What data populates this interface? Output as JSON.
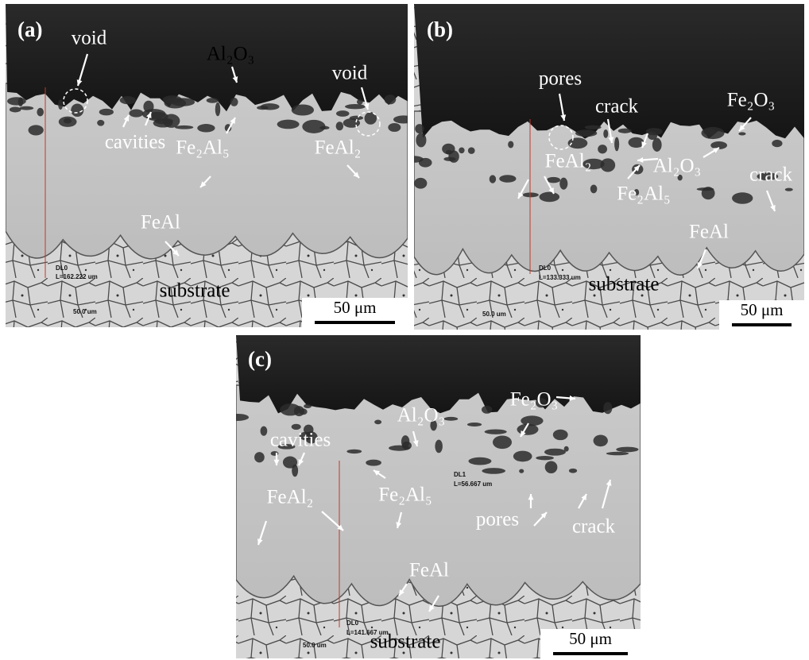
{
  "panels": [
    {
      "label": "(a)",
      "annotations": [
        "void",
        "Al₂O₃",
        "void",
        "cavities",
        "Fe₂Al₅",
        "FeAl₂",
        "FeAl",
        "substrate"
      ],
      "measurements": [
        "DL0",
        "L=162.222 um"
      ],
      "micron_marker": "50.0 um",
      "scale_bar": "50 μm"
    },
    {
      "label": "(b)",
      "annotations": [
        "pores",
        "crack",
        "Fe₂O₃",
        "Al₂O₃",
        "FeAl₂",
        "Fe₂Al₅",
        "crack",
        "FeAl",
        "substrate"
      ],
      "measurements": [
        "DL0",
        "L=133.333 um"
      ],
      "micron_marker": "50.0 um",
      "scale_bar": "50 μm"
    },
    {
      "label": "(c)",
      "annotations": [
        "Al₂O₃",
        "Fe₂O₃",
        "cavities",
        "FeAl₂",
        "Fe₂Al₅",
        "pores",
        "crack",
        "FeAl",
        "substrate"
      ],
      "measurements": [
        "DL1",
        "L=56.667 um",
        "DL0",
        "L=141.667 um"
      ],
      "micron_marker": "50.0 um",
      "scale_bar": "50 μm"
    }
  ]
}
